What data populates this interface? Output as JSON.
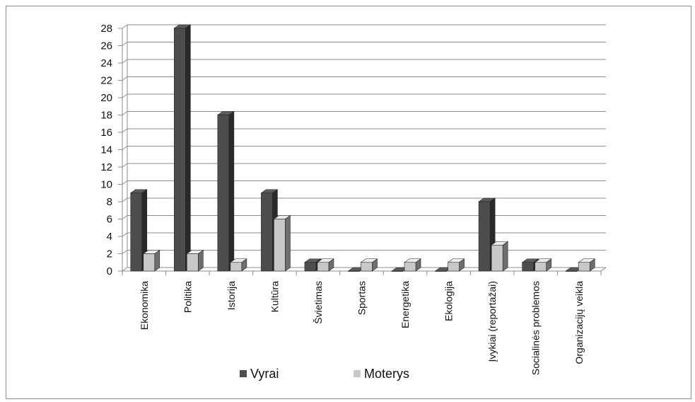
{
  "chart_data": {
    "type": "bar",
    "style": "3d-clustered-column",
    "categories": [
      "Ekonomika",
      "Politika",
      "Istorija",
      "Kultūra",
      "Švietimas",
      "Sportas",
      "Energetika",
      "Ekologija",
      "Įvykiai (reportažai)",
      "Socialinės problemos",
      "Organizacijų veikla"
    ],
    "series": [
      {
        "name": "Vyrai",
        "color": "#4d4d4d",
        "values": [
          9,
          28,
          18,
          9,
          1,
          0,
          0,
          0,
          8,
          1,
          0
        ]
      },
      {
        "name": "Moterys",
        "color": "#c8c8c8",
        "values": [
          2,
          2,
          1,
          6,
          1,
          1,
          1,
          1,
          3,
          1,
          1
        ]
      }
    ],
    "title": "",
    "xlabel": "",
    "ylabel": "",
    "ylim": [
      0,
      28
    ],
    "yticks": [
      0,
      2,
      4,
      6,
      8,
      10,
      12,
      14,
      16,
      18,
      20,
      22,
      24,
      26,
      28
    ],
    "grid": true,
    "legend": "bottom-left"
  }
}
